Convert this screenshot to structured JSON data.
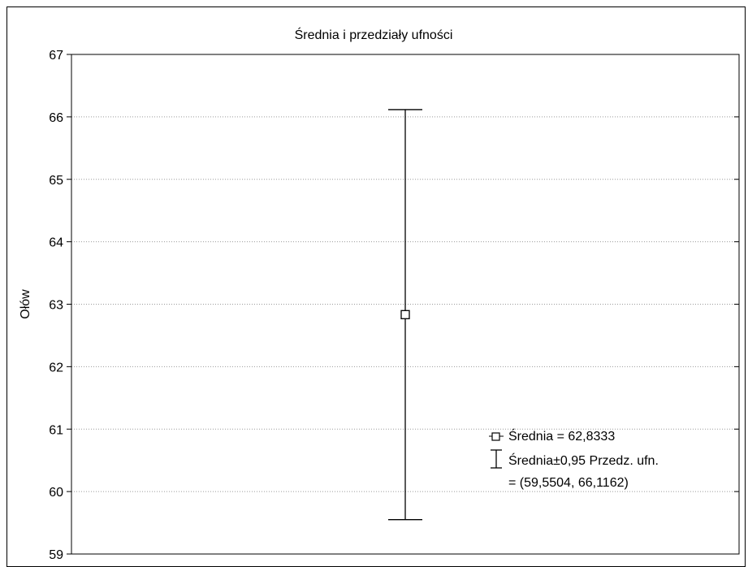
{
  "chart_data": {
    "type": "scatter",
    "title": "Średnia i przedziały ufności",
    "xlabel": "",
    "ylabel": "Ołów",
    "ylim": [
      59,
      67
    ],
    "yticks": [
      "59",
      "60",
      "61",
      "62",
      "63",
      "64",
      "65",
      "66",
      "67"
    ],
    "grid": true,
    "series": [
      {
        "mean": 62.8333,
        "ci_low": 59.5504,
        "ci_high": 66.1162
      }
    ],
    "legend": {
      "placement": "bottom-right",
      "mean_label": "Średnia = 62,8333",
      "ci_label_line1": "Średnia±0,95 Przedz. ufn.",
      "ci_label_line2": "= (59,5504, 66,1162)"
    }
  }
}
